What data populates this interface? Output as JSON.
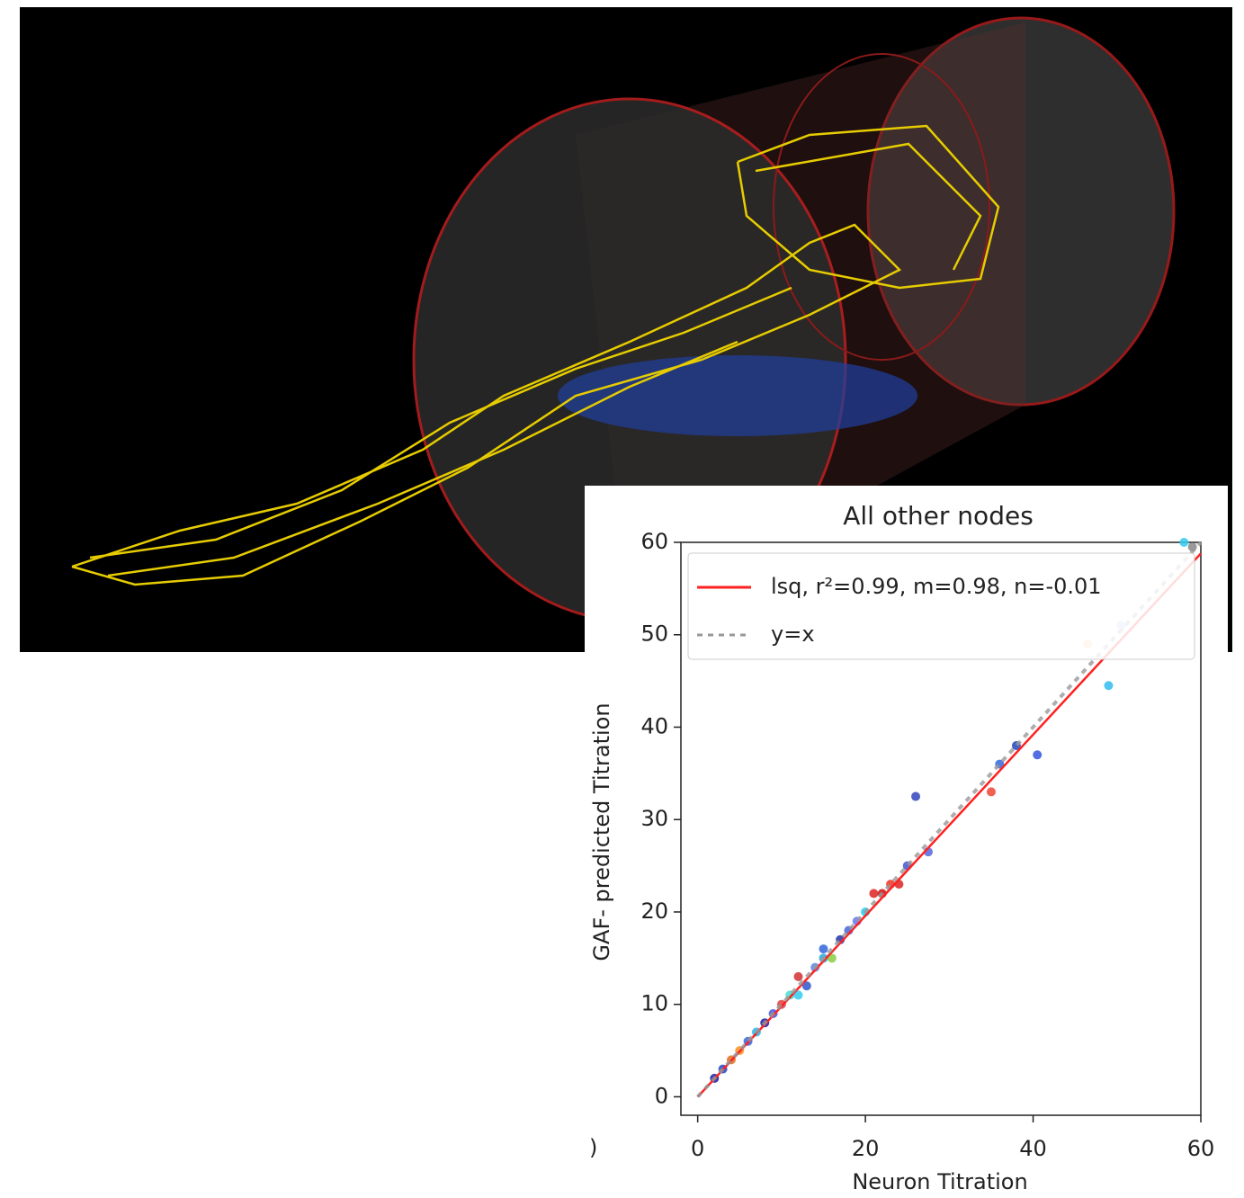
{
  "chart_data": {
    "type": "scatter",
    "title": "All other nodes",
    "xlabel": "Neuron Titration",
    "ylabel": "GAF- predicted Titration",
    "stray_text": ")",
    "xlim": [
      -2,
      60
    ],
    "ylim": [
      -2,
      60
    ],
    "xticks": [
      0,
      20,
      40,
      60
    ],
    "yticks": [
      0,
      10,
      20,
      30,
      40,
      50,
      60
    ],
    "legend": "upper left",
    "points": {
      "x": [
        2,
        3,
        4,
        5,
        6,
        7,
        8,
        9,
        10,
        11,
        12,
        12,
        13,
        14,
        15,
        15,
        16,
        17,
        18,
        19,
        20,
        21,
        22,
        23,
        24,
        25,
        26,
        27.5,
        35,
        36,
        38,
        40.5,
        46.5,
        49,
        50.5,
        58,
        59
      ],
      "values": [
        2,
        3,
        4,
        5,
        6,
        7,
        8,
        9,
        10,
        11,
        13,
        11,
        12,
        14,
        15,
        16,
        15,
        17,
        18,
        19,
        20,
        22,
        22,
        23,
        23,
        25,
        32.5,
        26.5,
        33,
        36,
        38,
        37,
        49,
        44.5,
        51,
        60,
        59.5
      ],
      "colors": [
        "#1a1aa0",
        "#2244cc",
        "#e07020",
        "#ff9020",
        "#3366dd",
        "#22bbee",
        "#1a1aa0",
        "#4455dd",
        "#e04040",
        "#44ddcc",
        "#d03030",
        "#33ccee",
        "#3355cc",
        "#5588ee",
        "#22aadd",
        "#3366dd",
        "#88cc44",
        "#2233aa",
        "#4466dd",
        "#6677ee",
        "#22ccee",
        "#dd2222",
        "#cc1111",
        "#ee3322",
        "#dd2222",
        "#4455cc",
        "#3344bb",
        "#5566dd",
        "#ee4433",
        "#3366dd",
        "#2244bb",
        "#3355dd",
        "#ffbb88",
        "#33bbee",
        "#aabbee",
        "#33ccee",
        "#888888"
      ]
    },
    "series": [
      {
        "name": "lsq, r²=0.99, m=0.98, n=-0.01",
        "color": "#ff2020",
        "style": "solid",
        "x": [
          0,
          60
        ],
        "values": [
          -0.01,
          58.79
        ]
      },
      {
        "name": "y=x",
        "color": "#999999",
        "style": "dashed",
        "x": [
          0,
          60
        ],
        "values": [
          0,
          60
        ]
      }
    ]
  }
}
